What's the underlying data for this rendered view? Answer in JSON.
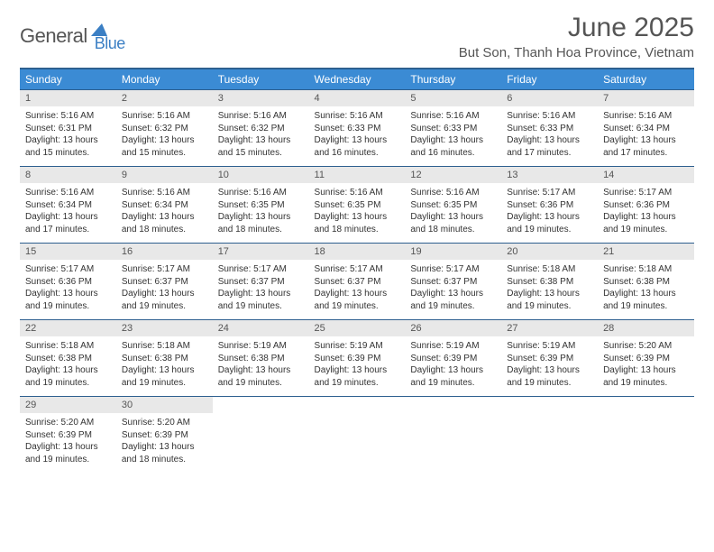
{
  "logo": {
    "part1": "General",
    "part2": "Blue"
  },
  "title": "June 2025",
  "subtitle": "But Son, Thanh Hoa Province, Vietnam",
  "dayHeaders": [
    "Sunday",
    "Monday",
    "Tuesday",
    "Wednesday",
    "Thursday",
    "Friday",
    "Saturday"
  ],
  "colors": {
    "headerBg": "#3b8bd4",
    "headerBorder": "#2d5f8f",
    "dayBg": "#e8e8e8",
    "titleColor": "#555555",
    "textColor": "#333333",
    "logoBlue": "#3b7fc4"
  },
  "fontSizes": {
    "title": 30,
    "subtitle": 15,
    "dayHeader": 12,
    "dayNum": 11,
    "body": 10
  },
  "weeks": [
    {
      "nums": [
        "1",
        "2",
        "3",
        "4",
        "5",
        "6",
        "7"
      ],
      "cells": [
        {
          "sunrise": "5:16 AM",
          "sunset": "6:31 PM",
          "daylight": "13 hours and 15 minutes."
        },
        {
          "sunrise": "5:16 AM",
          "sunset": "6:32 PM",
          "daylight": "13 hours and 15 minutes."
        },
        {
          "sunrise": "5:16 AM",
          "sunset": "6:32 PM",
          "daylight": "13 hours and 15 minutes."
        },
        {
          "sunrise": "5:16 AM",
          "sunset": "6:33 PM",
          "daylight": "13 hours and 16 minutes."
        },
        {
          "sunrise": "5:16 AM",
          "sunset": "6:33 PM",
          "daylight": "13 hours and 16 minutes."
        },
        {
          "sunrise": "5:16 AM",
          "sunset": "6:33 PM",
          "daylight": "13 hours and 17 minutes."
        },
        {
          "sunrise": "5:16 AM",
          "sunset": "6:34 PM",
          "daylight": "13 hours and 17 minutes."
        }
      ]
    },
    {
      "nums": [
        "8",
        "9",
        "10",
        "11",
        "12",
        "13",
        "14"
      ],
      "cells": [
        {
          "sunrise": "5:16 AM",
          "sunset": "6:34 PM",
          "daylight": "13 hours and 17 minutes."
        },
        {
          "sunrise": "5:16 AM",
          "sunset": "6:34 PM",
          "daylight": "13 hours and 18 minutes."
        },
        {
          "sunrise": "5:16 AM",
          "sunset": "6:35 PM",
          "daylight": "13 hours and 18 minutes."
        },
        {
          "sunrise": "5:16 AM",
          "sunset": "6:35 PM",
          "daylight": "13 hours and 18 minutes."
        },
        {
          "sunrise": "5:16 AM",
          "sunset": "6:35 PM",
          "daylight": "13 hours and 18 minutes."
        },
        {
          "sunrise": "5:17 AM",
          "sunset": "6:36 PM",
          "daylight": "13 hours and 19 minutes."
        },
        {
          "sunrise": "5:17 AM",
          "sunset": "6:36 PM",
          "daylight": "13 hours and 19 minutes."
        }
      ]
    },
    {
      "nums": [
        "15",
        "16",
        "17",
        "18",
        "19",
        "20",
        "21"
      ],
      "cells": [
        {
          "sunrise": "5:17 AM",
          "sunset": "6:36 PM",
          "daylight": "13 hours and 19 minutes."
        },
        {
          "sunrise": "5:17 AM",
          "sunset": "6:37 PM",
          "daylight": "13 hours and 19 minutes."
        },
        {
          "sunrise": "5:17 AM",
          "sunset": "6:37 PM",
          "daylight": "13 hours and 19 minutes."
        },
        {
          "sunrise": "5:17 AM",
          "sunset": "6:37 PM",
          "daylight": "13 hours and 19 minutes."
        },
        {
          "sunrise": "5:17 AM",
          "sunset": "6:37 PM",
          "daylight": "13 hours and 19 minutes."
        },
        {
          "sunrise": "5:18 AM",
          "sunset": "6:38 PM",
          "daylight": "13 hours and 19 minutes."
        },
        {
          "sunrise": "5:18 AM",
          "sunset": "6:38 PM",
          "daylight": "13 hours and 19 minutes."
        }
      ]
    },
    {
      "nums": [
        "22",
        "23",
        "24",
        "25",
        "26",
        "27",
        "28"
      ],
      "cells": [
        {
          "sunrise": "5:18 AM",
          "sunset": "6:38 PM",
          "daylight": "13 hours and 19 minutes."
        },
        {
          "sunrise": "5:18 AM",
          "sunset": "6:38 PM",
          "daylight": "13 hours and 19 minutes."
        },
        {
          "sunrise": "5:19 AM",
          "sunset": "6:38 PM",
          "daylight": "13 hours and 19 minutes."
        },
        {
          "sunrise": "5:19 AM",
          "sunset": "6:39 PM",
          "daylight": "13 hours and 19 minutes."
        },
        {
          "sunrise": "5:19 AM",
          "sunset": "6:39 PM",
          "daylight": "13 hours and 19 minutes."
        },
        {
          "sunrise": "5:19 AM",
          "sunset": "6:39 PM",
          "daylight": "13 hours and 19 minutes."
        },
        {
          "sunrise": "5:20 AM",
          "sunset": "6:39 PM",
          "daylight": "13 hours and 19 minutes."
        }
      ]
    },
    {
      "nums": [
        "29",
        "30",
        "",
        "",
        "",
        "",
        ""
      ],
      "cells": [
        {
          "sunrise": "5:20 AM",
          "sunset": "6:39 PM",
          "daylight": "13 hours and 19 minutes."
        },
        {
          "sunrise": "5:20 AM",
          "sunset": "6:39 PM",
          "daylight": "13 hours and 18 minutes."
        },
        null,
        null,
        null,
        null,
        null
      ]
    }
  ],
  "labels": {
    "sunrise": "Sunrise:",
    "sunset": "Sunset:",
    "daylight": "Daylight:"
  }
}
